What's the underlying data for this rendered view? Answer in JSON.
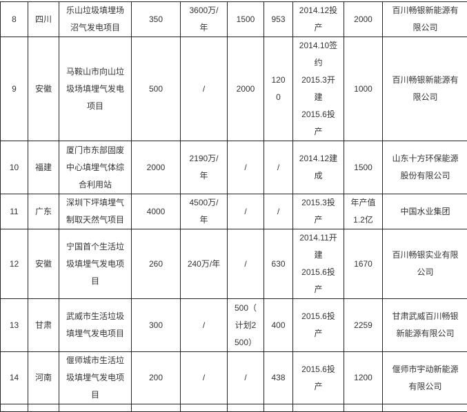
{
  "rows": [
    {
      "no": "8",
      "province": "四川",
      "project": "乐山垃圾填埋场\n沼气发电项目",
      "c4": "350",
      "c5": "3600万/\n年",
      "c6": "1500",
      "c7": "953",
      "status": "2014.12投\n产",
      "c9": "2000",
      "company": "百川畅银新能源有\n限公司"
    },
    {
      "no": "9",
      "province": "安徽",
      "project": "马鞍山市向山垃\n圾场填埋气发电\n项目",
      "c4": "500",
      "c5": "/",
      "c6": "2000",
      "c7": "120\n0",
      "status": "2014.10签\n约\n2015.3开\n建\n2015.6投\n产",
      "c9": "1000",
      "company": "百川畅银新能源有\n限公司"
    },
    {
      "no": "10",
      "province": "福建",
      "project": "厦门市东部固废\n中心填埋气体综\n合利用站",
      "c4": "2000",
      "c5": "2190万/\n年",
      "c6": "/",
      "c7": "/",
      "status": "2014.12建\n成",
      "c9": "1500",
      "company": "山东十方环保能源\n股份有限公司"
    },
    {
      "no": "11",
      "province": "广东",
      "project": "深圳下坪填埋气\n制取天然气项目",
      "c4": "4000",
      "c5": "4500万/\n年",
      "c6": "/",
      "c7": "/",
      "status": "2015.3投\n产",
      "c9": "年产值\n1.2亿",
      "company": "中国水业集团"
    },
    {
      "no": "12",
      "province": "安徽",
      "project": "宁国首个生活垃\n圾填埋气发电项\n目",
      "c4": "260",
      "c5": "240万/年",
      "c6": "/",
      "c7": "630",
      "status": "2014.11开\n建\n2015.6投\n产",
      "c9": "1670",
      "company": "百川畅银实业有限\n公司"
    },
    {
      "no": "13",
      "province": "甘肃",
      "project": "武威市生活垃圾\n填埋气发电项目",
      "c4": "300",
      "c5": "/",
      "c6": "500（\n计划2\n500）",
      "c7": "400",
      "status": "2015.6投\n产",
      "c9": "2259",
      "company": "甘肃武威百川畅银\n新能源有限公司"
    },
    {
      "no": "14",
      "province": "河南",
      "project": "偃师城市生活垃\n圾填埋气发电项\n目",
      "c4": "200",
      "c5": "/",
      "c6": "/",
      "c7": "438",
      "status": "2015.6投\n产",
      "c9": "1200",
      "company": "偃师市宇动新能源\n有限公司"
    }
  ]
}
